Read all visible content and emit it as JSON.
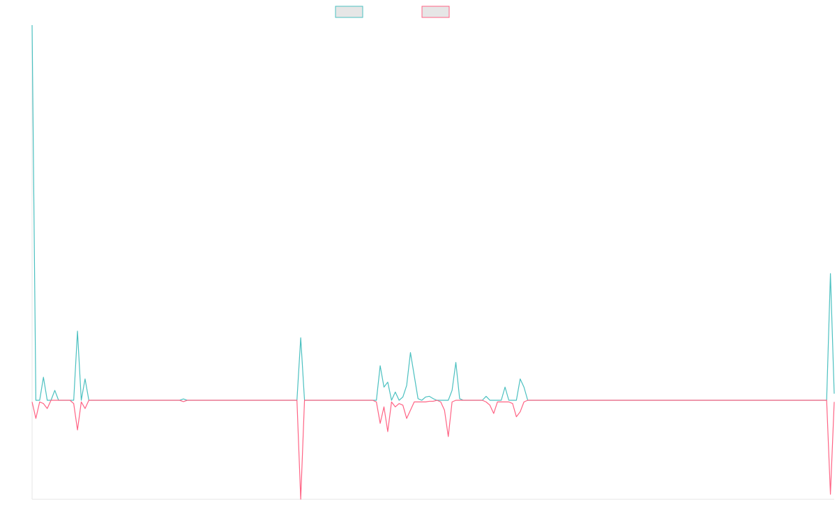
{
  "chart_data": {
    "type": "line",
    "title": "",
    "xlabel": "",
    "ylabel": "",
    "grid": false,
    "legend_position": "top-center",
    "x": [
      0,
      1,
      2,
      3,
      4,
      5,
      6,
      7,
      8,
      9,
      10,
      11,
      12,
      13,
      14,
      15,
      16,
      17,
      18,
      19,
      20,
      21,
      22,
      23,
      24,
      25,
      26,
      27,
      28,
      29,
      30,
      31,
      32,
      33,
      34,
      35,
      36,
      37,
      38,
      39,
      40,
      41,
      42,
      43,
      44,
      45,
      46,
      47,
      48,
      49,
      50,
      51,
      52,
      53,
      54,
      55,
      56,
      57,
      58,
      59,
      60,
      61,
      62,
      63,
      64,
      65,
      66,
      67,
      68,
      69,
      70,
      71,
      72,
      73,
      74,
      75,
      76,
      77,
      78,
      79,
      80,
      81,
      82,
      83,
      84,
      85,
      86,
      87,
      88,
      89,
      90,
      91,
      92,
      93,
      94,
      95,
      96,
      97,
      98,
      99,
      100,
      101,
      102,
      103,
      104,
      105,
      106,
      107,
      108,
      109,
      110,
      111,
      112,
      113,
      114,
      115,
      116,
      117,
      118,
      119,
      120,
      121,
      122,
      123,
      124,
      125,
      126,
      127,
      128,
      129,
      130,
      131,
      132,
      133,
      134,
      135,
      136,
      137,
      138,
      139,
      140,
      141,
      142,
      143,
      144,
      145,
      146,
      147,
      148,
      149,
      150,
      151,
      152,
      153,
      154,
      155,
      156,
      157,
      158,
      159,
      160,
      161,
      162,
      163,
      164,
      165,
      166,
      167,
      168,
      169,
      170,
      171,
      172,
      173,
      174,
      175,
      176,
      177,
      178,
      179,
      180,
      181,
      182,
      183,
      184,
      185,
      186,
      187,
      188,
      189,
      190,
      191,
      192,
      193,
      194,
      195,
      196,
      197,
      198,
      199,
      200,
      201,
      202,
      203,
      204,
      205,
      206,
      207,
      208,
      209,
      210,
      211,
      212
    ],
    "ylim": [
      -300,
      1140
    ],
    "series": [
      {
        "color": "#4bc0c0",
        "values": [
          1140,
          0,
          0,
          70,
          0,
          0,
          30,
          0,
          0,
          0,
          0,
          0,
          210,
          0,
          65,
          0,
          0,
          0,
          0,
          0,
          0,
          0,
          0,
          0,
          0,
          0,
          0,
          0,
          0,
          0,
          0,
          0,
          0,
          0,
          0,
          0,
          0,
          0,
          0,
          0,
          4,
          0,
          0,
          0,
          0,
          0,
          0,
          0,
          0,
          0,
          0,
          0,
          0,
          0,
          0,
          0,
          0,
          0,
          0,
          0,
          0,
          0,
          0,
          0,
          0,
          0,
          0,
          0,
          0,
          0,
          0,
          190,
          0,
          0,
          0,
          0,
          0,
          0,
          0,
          0,
          0,
          0,
          0,
          0,
          0,
          0,
          0,
          0,
          0,
          0,
          0,
          0,
          105,
          40,
          55,
          0,
          25,
          0,
          10,
          45,
          145,
          75,
          5,
          0,
          10,
          12,
          5,
          0,
          0,
          0,
          0,
          30,
          115,
          5,
          0,
          0,
          0,
          0,
          0,
          0,
          12,
          0,
          0,
          0,
          0,
          40,
          0,
          0,
          0,
          65,
          40,
          0,
          0,
          0,
          0,
          0,
          0,
          0,
          0,
          0,
          0,
          0,
          0,
          0,
          0,
          0,
          0,
          0,
          0,
          0,
          0,
          0,
          0,
          0,
          0,
          0,
          0,
          0,
          0,
          0,
          0,
          0,
          0,
          0,
          0,
          0,
          0,
          0,
          0,
          0,
          0,
          0,
          0,
          0,
          0,
          0,
          0,
          0,
          0,
          0,
          0,
          0,
          0,
          0,
          0,
          0,
          0,
          0,
          0,
          0,
          0,
          0,
          0,
          0,
          0,
          0,
          0,
          0,
          0,
          0,
          0,
          0,
          0,
          0,
          0,
          0,
          0,
          0,
          0,
          0,
          0,
          385,
          20
        ]
      },
      {
        "color": "#ff6384",
        "values": [
          -5,
          -55,
          -5,
          -10,
          -25,
          0,
          0,
          0,
          0,
          0,
          0,
          -10,
          -90,
          -5,
          -25,
          0,
          0,
          0,
          0,
          0,
          0,
          0,
          0,
          0,
          0,
          0,
          0,
          0,
          0,
          0,
          0,
          0,
          0,
          0,
          0,
          0,
          0,
          0,
          0,
          0,
          -4,
          0,
          0,
          0,
          0,
          0,
          0,
          0,
          0,
          0,
          0,
          0,
          0,
          0,
          0,
          0,
          0,
          0,
          0,
          0,
          0,
          0,
          0,
          0,
          0,
          0,
          0,
          0,
          0,
          0,
          0,
          -300,
          0,
          0,
          0,
          0,
          0,
          0,
          0,
          0,
          0,
          0,
          0,
          0,
          0,
          0,
          0,
          0,
          0,
          0,
          0,
          -5,
          -70,
          -20,
          -95,
          -5,
          -20,
          -10,
          -15,
          -55,
          -30,
          -5,
          -5,
          -5,
          -5,
          -3,
          -3,
          0,
          -5,
          -30,
          -110,
          -5,
          0,
          0,
          0,
          0,
          0,
          0,
          0,
          0,
          -5,
          -15,
          -40,
          -5,
          -5,
          -5,
          -5,
          -10,
          -50,
          -35,
          -5,
          0,
          0,
          0,
          0,
          0,
          0,
          0,
          0,
          0,
          0,
          0,
          0,
          0,
          0,
          0,
          0,
          0,
          0,
          0,
          0,
          0,
          0,
          0,
          0,
          0,
          0,
          0,
          0,
          0,
          0,
          0,
          0,
          0,
          0,
          0,
          0,
          0,
          0,
          0,
          0,
          0,
          0,
          0,
          0,
          0,
          0,
          0,
          0,
          0,
          0,
          0,
          0,
          0,
          0,
          0,
          0,
          0,
          0,
          0,
          0,
          0,
          0,
          0,
          0,
          0,
          0,
          0,
          0,
          0,
          0,
          0,
          0,
          0,
          0,
          0,
          0,
          0,
          0,
          0,
          0,
          -285,
          -5
        ]
      }
    ]
  }
}
